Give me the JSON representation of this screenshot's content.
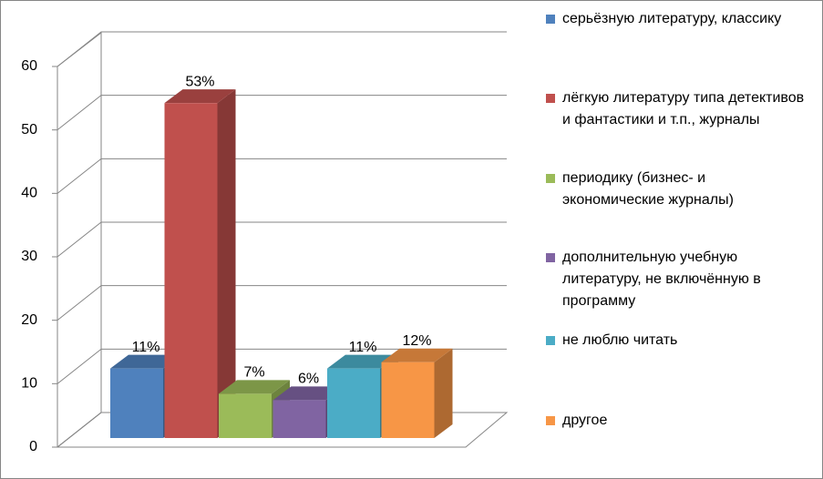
{
  "chart_data": {
    "type": "bar3d",
    "categories": [
      null
    ],
    "ylim": [
      0,
      60
    ],
    "yticks": [
      0,
      10,
      20,
      30,
      40,
      50,
      60
    ],
    "grid": true,
    "series": [
      {
        "name": "серьёзную литературу, классику",
        "color": "#4f81bd",
        "values": [
          11
        ],
        "value_labels": [
          "11%"
        ]
      },
      {
        "name": "лёгкую литературу типа детективов и фантастики и т.п., журналы",
        "color": "#c0504d",
        "values": [
          53
        ],
        "value_labels": [
          "53%"
        ]
      },
      {
        "name": "периодику (бизнес- и экономические журналы)",
        "color": "#9bbb59",
        "values": [
          7
        ],
        "value_labels": [
          "7%"
        ]
      },
      {
        "name": "дополнительную учебную литературу, не включённую в программу",
        "color": "#8064a2",
        "values": [
          6
        ],
        "value_labels": [
          "6%"
        ]
      },
      {
        "name": "не люблю читать",
        "color": "#4bacc6",
        "values": [
          11
        ],
        "value_labels": [
          "11%"
        ]
      },
      {
        "name": "другое",
        "color": "#f79646",
        "values": [
          12
        ],
        "value_labels": [
          "12%"
        ]
      }
    ]
  }
}
